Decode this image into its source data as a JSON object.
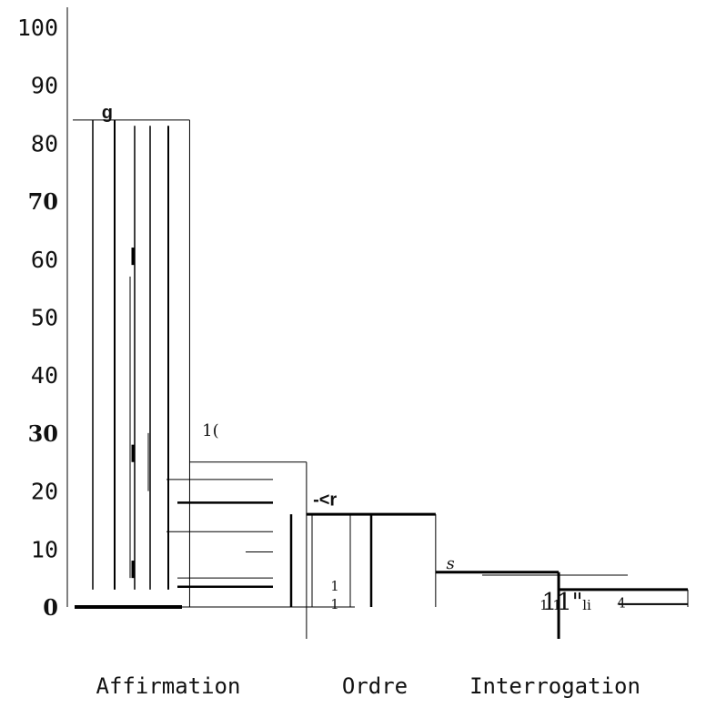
{
  "chart_data": {
    "type": "bar",
    "title": "",
    "xlabel": "",
    "ylabel": "",
    "ylim": [
      0,
      100
    ],
    "y_ticks": [
      "100",
      "90",
      "80",
      "70",
      "60",
      "50",
      "40",
      "30",
      "20",
      "10",
      "0"
    ],
    "categories": [
      "Affirmation",
      "Ordre",
      "Interrogation"
    ],
    "grid": false,
    "legend": "none",
    "bar_color": "#000000",
    "background": "#ffffff",
    "segments": [
      {
        "category": "Affirmation",
        "x_from": 0.0,
        "x_to": 0.95,
        "value": 84,
        "label": "g"
      },
      {
        "category": "Affirmation",
        "x_from": 0.95,
        "x_to": 1.9,
        "value": 25,
        "label": "1("
      },
      {
        "category": "Ordre",
        "x_from": 1.9,
        "x_to": 2.95,
        "value": 16,
        "label": "-<r"
      },
      {
        "category": "Ordre",
        "x_from": 2.95,
        "x_to": 3.95,
        "value": 6,
        "label": "s"
      },
      {
        "category": "Interrogation",
        "x_from": 3.95,
        "x_to": 5.0,
        "value": 3,
        "label": "11\""
      }
    ],
    "inner_labels": [
      "1",
      "1",
      "1 1",
      "li",
      "4"
    ]
  }
}
